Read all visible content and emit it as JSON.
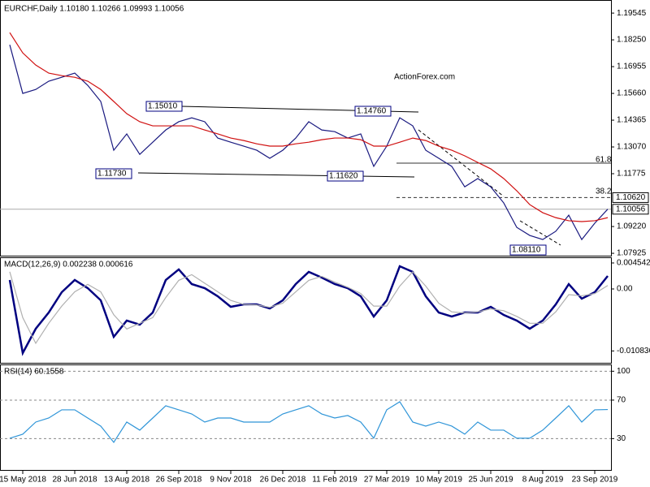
{
  "chart_data": [
    {
      "type": "line",
      "title": "EURCHF,Daily  1.10180 1.10266 1.09993 1.10056",
      "watermark": "ActionForex.com",
      "ylim": [
        1.0781,
        1.2006
      ],
      "yticks": [
        1.19545,
        {
          "value": 1.1825,
          "label": "1.18250"
        },
        1.16955,
        {
          "value": 1.1566,
          "label": "1.15660"
        },
        1.14365,
        {
          "value": 1.1307,
          "label": "1.13070"
        },
        1.11775,
        {
          "value": 1.0922,
          "label": "1.09220"
        },
        1.07925
      ],
      "series": [
        {
          "color": "#1a1a80",
          "values": [
            1.1801,
            1.1566,
            1.1585,
            1.1625,
            1.1644,
            1.1664,
            1.1605,
            1.1527,
            1.1291,
            1.137,
            1.1271,
            1.133,
            1.1389,
            1.1429,
            1.1448,
            1.1429,
            1.135,
            1.133,
            1.1311,
            1.1291,
            1.1252,
            1.1291,
            1.135,
            1.1429,
            1.1389,
            1.1381,
            1.135,
            1.137,
            1.1213,
            1.1311,
            1.1448,
            1.1409,
            1.1291,
            1.1252,
            1.1213,
            1.1114,
            1.1154,
            1.1114,
            1.1036,
            1.0918,
            1.0879,
            1.0859,
            1.0899,
            1.0977,
            1.0859,
            1.0938,
            1.1006
          ]
        },
        {
          "color": "#d01010",
          "values": [
            1.186,
            1.1762,
            1.1703,
            1.1664,
            1.1652,
            1.1644,
            1.1625,
            1.1585,
            1.1527,
            1.1468,
            1.1429,
            1.1409,
            1.1409,
            1.1409,
            1.1409,
            1.1389,
            1.137,
            1.135,
            1.1338,
            1.1322,
            1.1311,
            1.1311,
            1.1322,
            1.133,
            1.1342,
            1.135,
            1.135,
            1.1342,
            1.1311,
            1.1311,
            1.133,
            1.135,
            1.1338,
            1.1311,
            1.1291,
            1.1264,
            1.1232,
            1.1201,
            1.1154,
            1.1095,
            1.1028,
            1.0989,
            1.0965,
            1.095,
            1.0946,
            1.095,
            1.0965
          ]
        }
      ],
      "markers": [
        {
          "value": 1.1062,
          "label": "1.10620"
        },
        {
          "value": 1.10056,
          "label": "1.10056"
        }
      ],
      "annotations": [
        "1.15010",
        "1.14760",
        "1.11730",
        "1.11620",
        "1.08110",
        "61.8",
        "38.2"
      ]
    },
    {
      "type": "line",
      "title": "MACD(12,26,9) 0.002238 0.000616",
      "ylim": [
        -0.01291,
        0.00539
      ],
      "yticks": [
        0.004542,
        {
          "value": 0,
          "label": "0.00"
        },
        -0.010836
      ],
      "series": [
        {
          "color": "#000080",
          "values": [
            0.00156,
            -0.01121,
            -0.00695,
            -0.00412,
            -0.00057,
            0.00156,
            0.00014,
            -0.00199,
            -0.00837,
            -0.00553,
            -0.00624,
            -0.00412,
            0.00156,
            0.00341,
            0.00085,
            0.00014,
            -0.00128,
            -0.00312,
            -0.0027,
            -0.0027,
            -0.00341,
            -0.00199,
            0.00085,
            0.00298,
            0.00199,
            0.00085,
            0.00014,
            -0.00128,
            -0.00482,
            -0.00199,
            0.00397,
            0.00298,
            -0.00128,
            -0.00412,
            -0.00482,
            -0.00412,
            -0.00412,
            -0.00312,
            -0.00454,
            -0.00553,
            -0.00695,
            -0.00553,
            -0.0027,
            0.00085,
            -0.0017,
            -0.00057,
            0.00227
          ]
        },
        {
          "color": "#b0b0b0",
          "values": [
            0.003,
            -0.005,
            -0.0095,
            -0.006,
            -0.003,
            -0.0005,
            0.0008,
            -0.0005,
            -0.0045,
            -0.007,
            -0.006,
            -0.005,
            -0.0015,
            0.0015,
            0.0025,
            0.001,
            -0.0005,
            -0.002,
            -0.0027,
            -0.0028,
            -0.0032,
            -0.0025,
            -0.0005,
            0.0015,
            0.0022,
            0.0012,
            0.0003,
            -0.0008,
            -0.003,
            -0.003,
            0.0005,
            0.003,
            0.0005,
            -0.0025,
            -0.004,
            -0.0042,
            -0.004,
            -0.0035,
            -0.0038,
            -0.0048,
            -0.006,
            -0.006,
            -0.004,
            -0.001,
            -0.0012,
            -0.0008,
            0.0006
          ]
        }
      ]
    },
    {
      "type": "line",
      "title": "RSI(14) 60.1558",
      "ylim": [
        -3.4,
        106.2
      ],
      "yticks": [
        100,
        70,
        30
      ],
      "grid": true,
      "categories": [
        null,
        "15 May 2018",
        null,
        null,
        null,
        "28 Jun 2018",
        null,
        null,
        null,
        "13 Aug 2018",
        null,
        null,
        null,
        "26 Sep 2018",
        null,
        null,
        null,
        "9 Nov 2018",
        null,
        null,
        null,
        "26 Dec 2018",
        null,
        null,
        null,
        "11 Feb 2019",
        null,
        null,
        null,
        "27 Mar 2019",
        null,
        null,
        null,
        "10 May 2019",
        null,
        null,
        null,
        "25 Jun 2019",
        null,
        null,
        null,
        "8 Aug 2019",
        null,
        null,
        null,
        "23 Sep 2019",
        null
      ],
      "series": [
        {
          "color": "#2f95d8",
          "values": [
            30.4,
            34.6,
            47.2,
            51.4,
            59.9,
            59.9,
            51.4,
            43.0,
            26.1,
            47.2,
            38.8,
            51.4,
            64.1,
            59.9,
            55.6,
            47.2,
            51.4,
            51.4,
            47.2,
            47.2,
            47.2,
            55.6,
            59.9,
            64.1,
            55.6,
            51.4,
            54.0,
            47.2,
            30.4,
            59.9,
            68.3,
            47.2,
            43.0,
            47.2,
            43.0,
            34.6,
            47.2,
            38.8,
            38.8,
            30.4,
            30.4,
            38.8,
            51.4,
            64.1,
            47.2,
            59.9,
            60.2
          ]
        }
      ]
    }
  ]
}
